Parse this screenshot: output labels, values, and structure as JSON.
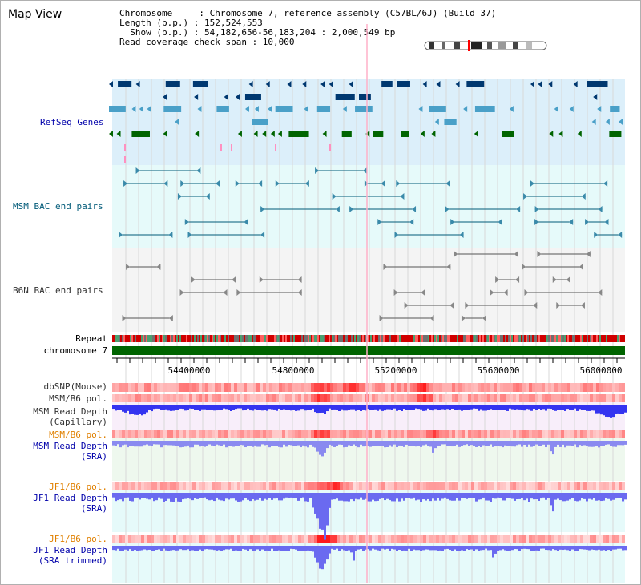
{
  "window": {
    "title": "Map View"
  },
  "header": {
    "line1": "Chromosome     : Chromosome 7, reference assembly (C57BL/6J) (Build 37)",
    "line2": "Length (b.p.) : 152,524,553",
    "line3": "  Show (b.p.) : 54,182,656-56,183,204 : 2,000,549 bp",
    "line4": "Read coverage check span : 10,000"
  },
  "tracks": {
    "refseq": "RefSeq Genes",
    "msm_bac": "MSM BAC end pairs",
    "b6n_bac": "B6N BAC end pairs",
    "repeat": "Repeat",
    "chromosome": "chromosome 7",
    "dbsnp": "dbSNP(Mouse)",
    "msm_b6_pol_1": "MSM/B6 pol.",
    "msm_depth_cap_1": "MSM Read Depth",
    "msm_depth_cap_2": "(Capillary)",
    "msm_b6_pol_2": "MSM/B6 pol.",
    "msm_depth_sra_1": "MSM Read Depth",
    "msm_depth_sra_2": "(SRA)",
    "jf1_b6_pol_1": "JF1/B6 pol.",
    "jf1_depth_sra_1": "JF1 Read Depth",
    "jf1_depth_sra_2": "(SRA)",
    "jf1_b6_pol_2": "JF1/B6 pol.",
    "jf1_depth_trim_1": "JF1 Read Depth",
    "jf1_depth_trim_2": "(SRA trimmed)"
  },
  "axis": {
    "ticks": [
      "54400000",
      "54800000",
      "55200000",
      "55600000",
      "56000000"
    ]
  },
  "colors": {
    "refseq_bg": "#dceffa",
    "msm_bac_bg": "#e6fafa",
    "b6n_bac_bg": "#f4f4f4",
    "chromosome": "#006400",
    "snp_red": "#e00000",
    "depth_blue": "#3030e0",
    "pol_pink": "#ffb8b8",
    "cap_bg": "#f8eefa",
    "sra_bg": "#eef8ee",
    "jf1_bg": "#e6fafa"
  }
}
